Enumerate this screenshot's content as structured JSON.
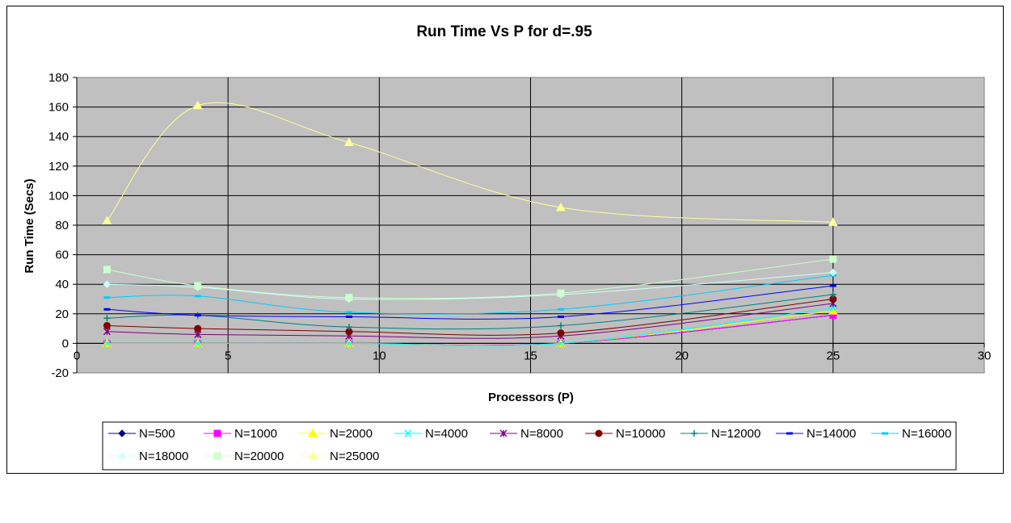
{
  "chart_data": {
    "type": "line",
    "title": "Run Time Vs P for d=.95",
    "xlabel": "Processors (P)",
    "ylabel": "Run Time (Secs)",
    "xlim": [
      0,
      30
    ],
    "ylim": [
      -20,
      180
    ],
    "x_ticks": [
      0,
      5,
      10,
      15,
      20,
      25,
      30
    ],
    "y_ticks": [
      -20,
      0,
      20,
      40,
      60,
      80,
      100,
      120,
      140,
      160,
      180
    ],
    "grid": true,
    "smooth": true,
    "legend_position": "bottom",
    "plot_background": "#c0c0c0",
    "x": [
      1,
      4,
      9,
      16,
      25
    ],
    "series": [
      {
        "name": "N=500",
        "color": "#000080",
        "marker": "diamond",
        "values": [
          0,
          0,
          0,
          0,
          19
        ]
      },
      {
        "name": "N=1000",
        "color": "#ff00ff",
        "marker": "square",
        "values": [
          0,
          0,
          0,
          0,
          19
        ]
      },
      {
        "name": "N=2000",
        "color": "#ffff00",
        "marker": "triangle",
        "values": [
          0,
          0,
          0,
          0,
          22
        ]
      },
      {
        "name": "N=4000",
        "color": "#00ffff",
        "marker": "x",
        "values": [
          0,
          0,
          0,
          0,
          24
        ]
      },
      {
        "name": "N=8000",
        "color": "#800080",
        "marker": "star",
        "values": [
          8,
          6,
          5,
          5,
          27
        ]
      },
      {
        "name": "N=10000",
        "color": "#800000",
        "marker": "circle",
        "values": [
          12,
          10,
          8,
          7,
          30
        ]
      },
      {
        "name": "N=12000",
        "color": "#008080",
        "marker": "plus",
        "values": [
          17,
          19,
          11,
          12,
          33
        ]
      },
      {
        "name": "N=14000",
        "color": "#0000ff",
        "marker": "dash",
        "values": [
          23,
          19,
          18,
          18,
          39
        ]
      },
      {
        "name": "N=16000",
        "color": "#00ccff",
        "marker": "dash",
        "values": [
          31,
          32,
          21,
          23,
          46
        ]
      },
      {
        "name": "N=18000",
        "color": "#ccffff",
        "marker": "diamond",
        "values": [
          40,
          38,
          30,
          33,
          48
        ]
      },
      {
        "name": "N=20000",
        "color": "#ccffcc",
        "marker": "square",
        "values": [
          50,
          39,
          31,
          34,
          57
        ]
      },
      {
        "name": "N=25000",
        "color": "#ffff99",
        "marker": "triangle",
        "values": [
          83,
          161,
          136,
          92,
          82
        ]
      }
    ]
  }
}
